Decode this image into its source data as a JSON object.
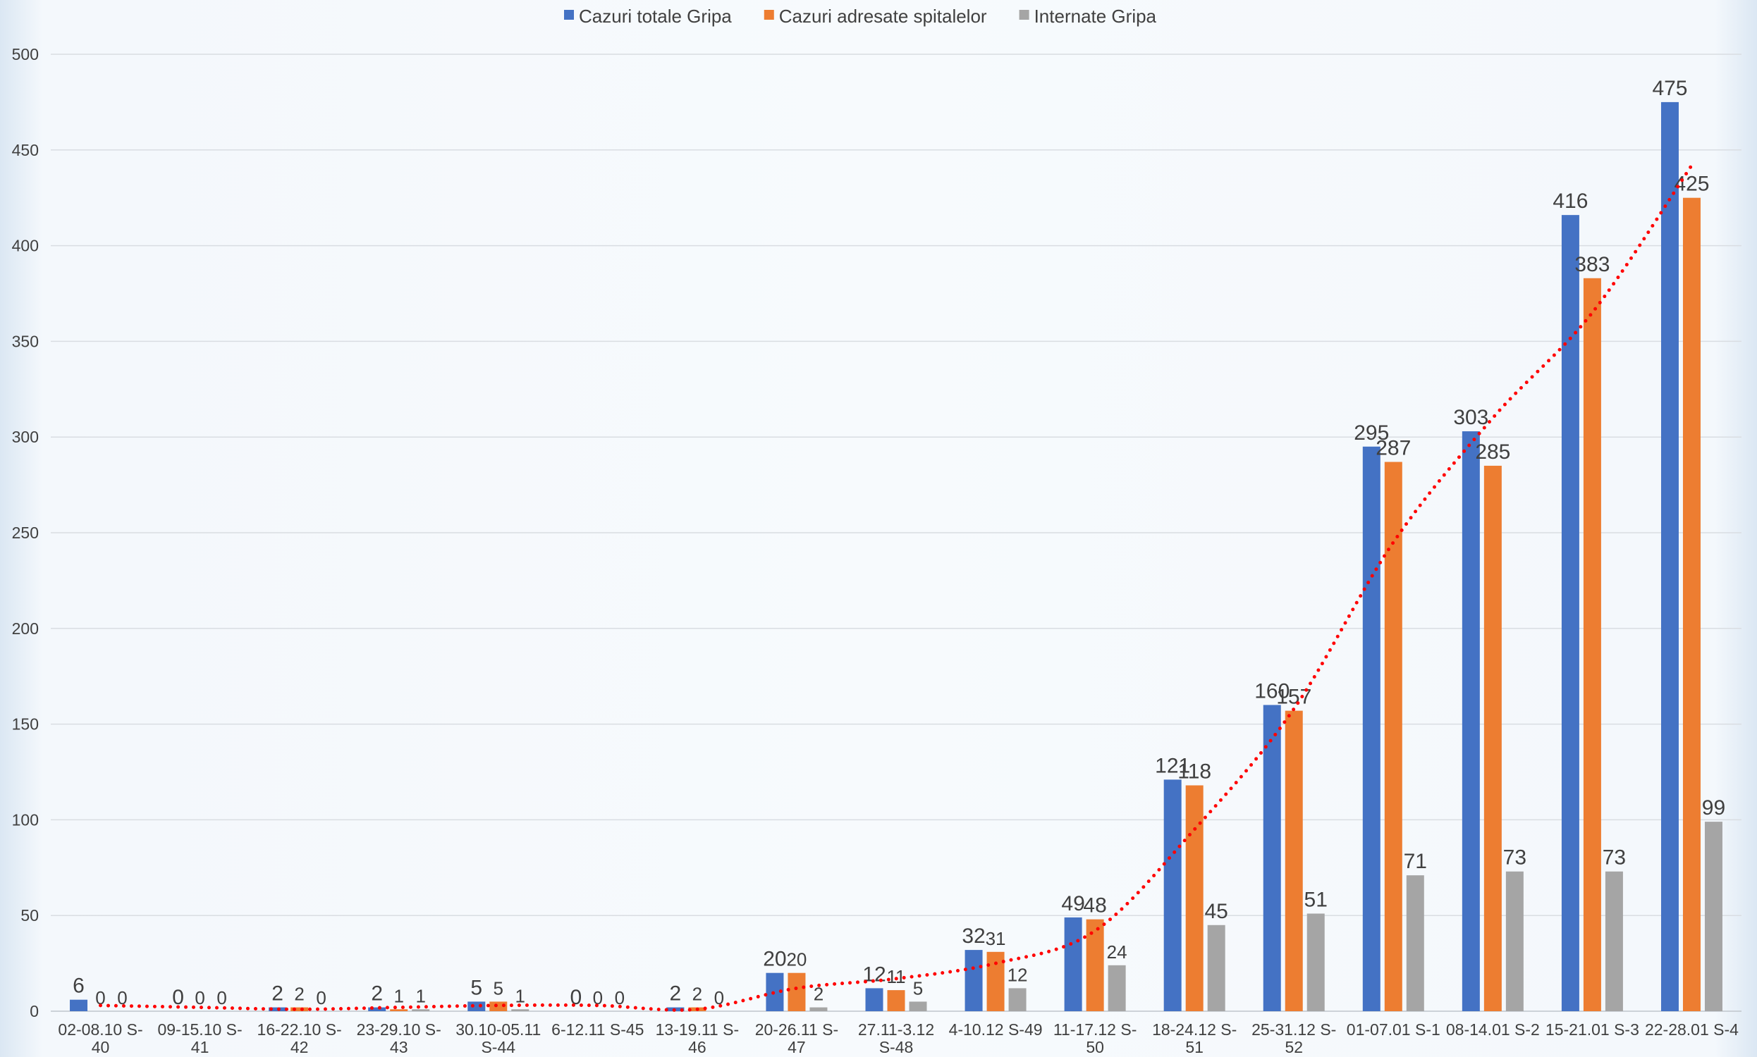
{
  "chart_data": {
    "type": "bar",
    "title": "",
    "xlabel": "",
    "ylabel": "",
    "ylim": [
      0,
      500
    ],
    "yticks": [
      0,
      50,
      100,
      150,
      200,
      250,
      300,
      350,
      400,
      450,
      500
    ],
    "grid": true,
    "legend_position": "top-center",
    "categories": [
      [
        "02-08.10 S-",
        "40"
      ],
      [
        "09-15.10 S-",
        "41"
      ],
      [
        "16-22.10 S-",
        "42"
      ],
      [
        "23-29.10 S-",
        "43"
      ],
      [
        "30.10-05.11",
        "S-44"
      ],
      [
        "6-12.11 S-45",
        ""
      ],
      [
        "13-19.11 S-",
        "46"
      ],
      [
        "20-26.11 S-",
        "47"
      ],
      [
        "27.11-3.12",
        "S-48"
      ],
      [
        "4-10.12 S-49",
        ""
      ],
      [
        "11-17.12 S-",
        "50"
      ],
      [
        "18-24.12 S-",
        "51"
      ],
      [
        "25-31.12 S-",
        "52"
      ],
      [
        "01-07.01 S-1",
        ""
      ],
      [
        "08-14.01 S-2",
        ""
      ],
      [
        "15-21.01 S-3",
        ""
      ],
      [
        "22-28.01 S-4",
        ""
      ]
    ],
    "series": [
      {
        "name": "Cazuri totale Gripa",
        "color": "#4472c4",
        "values": [
          6,
          0,
          2,
          2,
          5,
          0,
          2,
          20,
          12,
          32,
          49,
          121,
          160,
          295,
          303,
          416,
          475
        ]
      },
      {
        "name": "Cazuri adresate spitalelor",
        "color": "#ed7d31",
        "values": [
          0,
          0,
          2,
          1,
          5,
          0,
          2,
          20,
          11,
          31,
          48,
          118,
          157,
          287,
          285,
          383,
          425
        ]
      },
      {
        "name": "Internate Gripa",
        "color": "#a5a5a5",
        "values": [
          0,
          0,
          0,
          1,
          1,
          0,
          0,
          2,
          5,
          12,
          24,
          45,
          51,
          71,
          73,
          73,
          99
        ]
      }
    ],
    "trendline": {
      "style": "dotted",
      "color": "#ff0000",
      "values": [
        3,
        2,
        1,
        2,
        3,
        3,
        1,
        12,
        17,
        25,
        42,
        95,
        158,
        245,
        310,
        365,
        442
      ]
    }
  }
}
